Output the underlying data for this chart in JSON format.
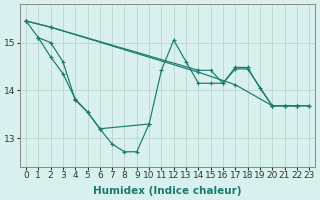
{
  "background_color": "#d8f0ee",
  "grid_color": "#c0d8d4",
  "line_color": "#1a7a6e",
  "xlabel": "Humidex (Indice chaleur)",
  "xlabel_fontsize": 7.5,
  "tick_fontsize": 6.5,
  "yticks": [
    13,
    14,
    15
  ],
  "ylim": [
    12.4,
    15.8
  ],
  "xlim": [
    -0.5,
    23.5
  ],
  "series": [
    {
      "x": [
        0,
        2,
        14,
        17,
        20,
        21,
        22,
        23
      ],
      "y": [
        15.45,
        15.32,
        14.38,
        14.12,
        13.68,
        13.68,
        13.68,
        13.68
      ]
    },
    {
      "x": [
        0,
        2,
        14,
        15,
        16,
        17,
        18,
        20,
        21,
        22,
        23
      ],
      "y": [
        15.45,
        15.32,
        14.42,
        14.42,
        14.15,
        14.45,
        14.45,
        13.68,
        13.68,
        13.68,
        13.68
      ]
    },
    {
      "x": [
        0,
        1,
        2,
        3,
        4,
        5,
        6,
        10,
        11,
        12,
        13,
        14,
        15,
        16,
        17,
        18,
        19,
        20,
        21,
        22
      ],
      "y": [
        15.45,
        15.1,
        15.0,
        14.6,
        13.8,
        13.55,
        13.2,
        13.3,
        14.42,
        15.05,
        14.6,
        14.15,
        14.15,
        14.15,
        14.48,
        14.48,
        14.05,
        13.68,
        13.68,
        13.68
      ]
    },
    {
      "x": [
        1,
        2,
        3,
        4,
        5,
        6,
        7,
        8,
        9,
        10
      ],
      "y": [
        15.1,
        14.7,
        14.35,
        13.82,
        13.55,
        13.2,
        12.88,
        12.72,
        12.72,
        13.3
      ]
    }
  ]
}
